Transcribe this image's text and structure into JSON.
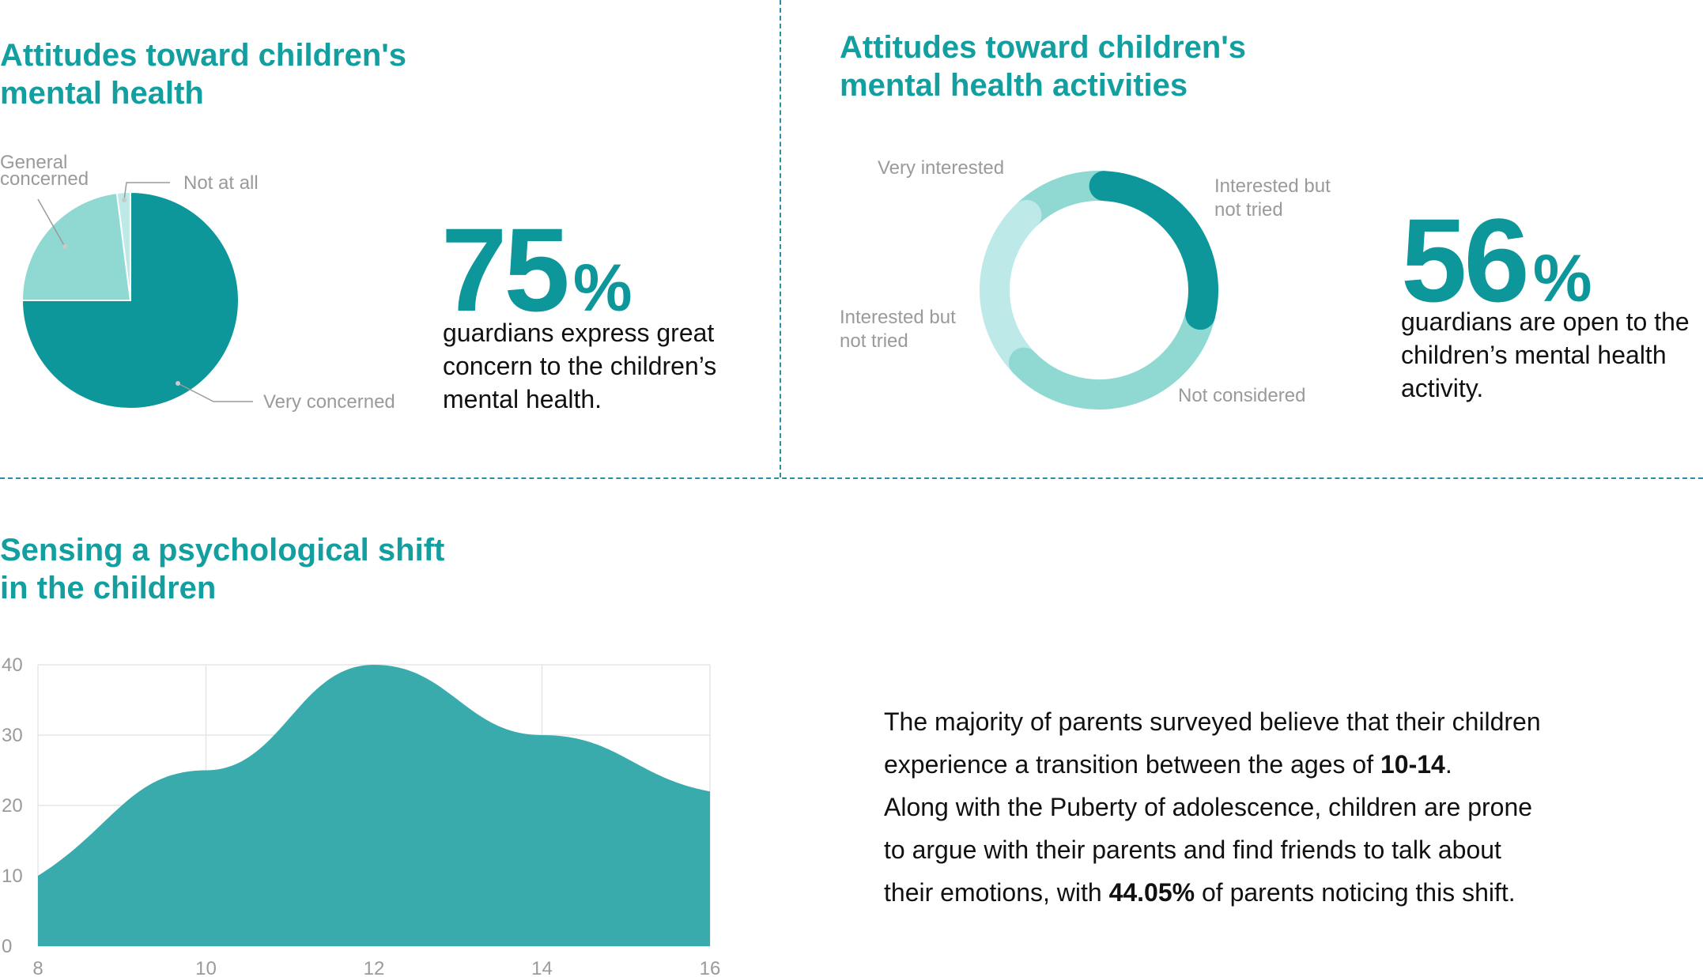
{
  "colors": {
    "teal_dark": "#0e979a",
    "teal_mid": "#8fd9d2",
    "teal_light": "#bde9e9",
    "area": "#3aabad",
    "title": "#139ea0"
  },
  "panel1": {
    "title_line1": "Attitudes toward children's",
    "title_line2": "mental health",
    "stat_number": "75",
    "stat_unit": "%",
    "desc_line1": "guardians express great",
    "desc_line2": "concern to the children’s",
    "desc_line3": "mental health."
  },
  "panel2": {
    "title_line1": "Attitudes toward children's",
    "title_line2": "mental health activities",
    "stat_number": "56",
    "stat_unit": "%",
    "desc_line1": "guardians are open to the",
    "desc_line2": "children’s mental health",
    "desc_line3": "activity."
  },
  "panel3": {
    "title_line1": "Sensing a psychological shift",
    "title_line2": "in the children",
    "para": {
      "l1": "The majority of parents surveyed believe that their children",
      "l2_pre": "experience a transition between the ages of ",
      "l2_bold": "10-14",
      "l2_post": ".",
      "l3": "Along with the Puberty of adolescence, children are prone",
      "l4": "to argue with their parents and find friends to talk about",
      "l5_pre": "their emotions, with ",
      "l5_bold": "44.05%",
      "l5_post": " of parents noticing this shift."
    }
  },
  "chart_data": [
    {
      "type": "pie",
      "slices": [
        {
          "label": "Very concerned",
          "value": 75,
          "color": "#0e979a"
        },
        {
          "label": "General concerned",
          "value": 23,
          "color": "#8fd9d2"
        },
        {
          "label": "Not at all",
          "value": 2,
          "color": "#bde9e9"
        }
      ],
      "label_lines": {
        "very": "Very concerned",
        "general_1": "General",
        "general_2": "concerned",
        "notatall": "Not at all"
      }
    },
    {
      "type": "pie",
      "donut": true,
      "slices": [
        {
          "label": "Interested but not tried",
          "value": 28,
          "color": "#0e979a"
        },
        {
          "label": "Not considered",
          "value": 34,
          "color": "#8fd9d2"
        },
        {
          "label": "Interested but not tried",
          "value": 25,
          "color": "#bde9e9"
        },
        {
          "label": "Very interested",
          "value": 13,
          "color": "#8fd9d2"
        }
      ],
      "label_lines": {
        "very": "Very interested",
        "right_1": "Interested but",
        "right_2": "not tried",
        "left_1": "Interested but",
        "left_2": "not tried",
        "notconsidered": "Not considered"
      }
    },
    {
      "type": "area",
      "x": [
        8,
        10,
        12,
        14,
        16
      ],
      "y": [
        10,
        25,
        40,
        30,
        22
      ],
      "xlim": [
        8,
        16
      ],
      "ylim": [
        0,
        40
      ],
      "xticks": [
        8,
        10,
        12,
        14,
        16
      ],
      "yticks": [
        0,
        10,
        20,
        30,
        40
      ],
      "grid": true
    }
  ]
}
